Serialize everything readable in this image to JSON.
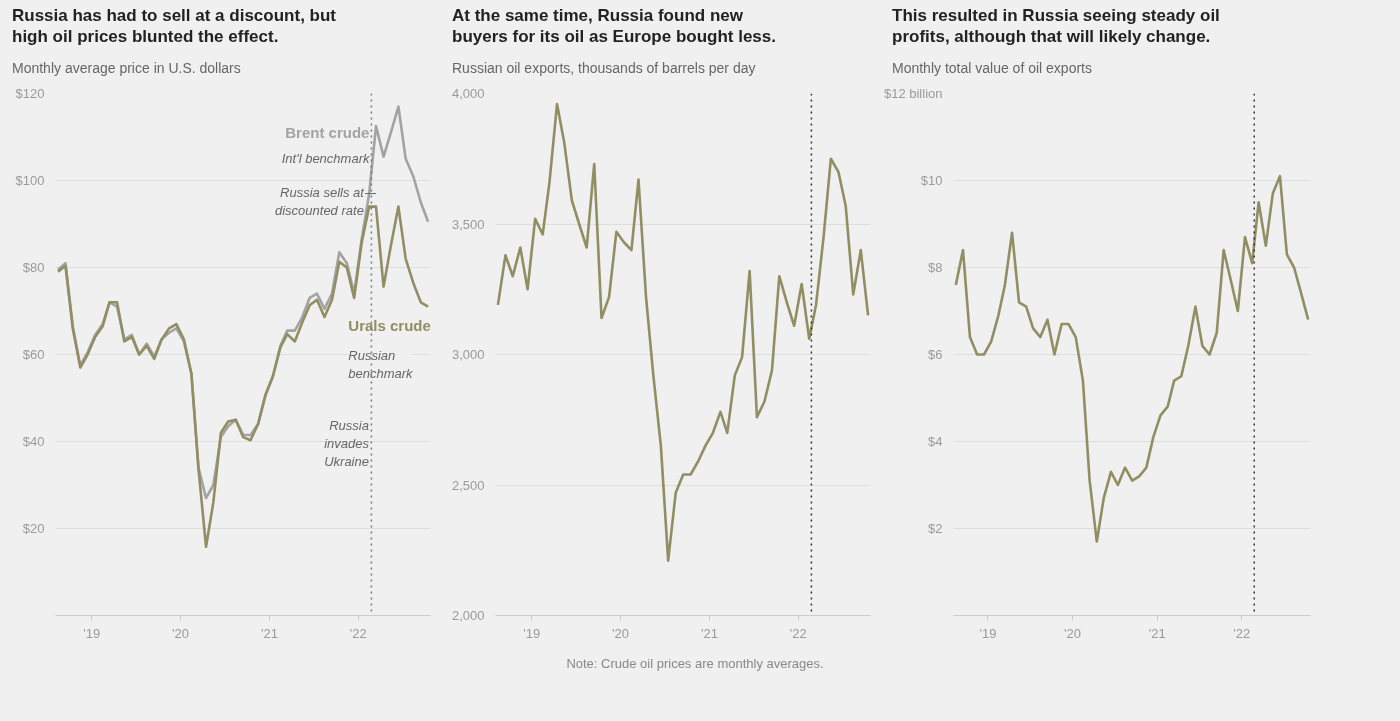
{
  "chart_data": [
    {
      "type": "line",
      "title": "Russia has had to sell at a discount, but high oil prices blunted the effect.",
      "subtitle": "Monthly average price in U.S. dollars",
      "x": [
        "2018-08-15",
        "2018-09-15",
        "2018-10-15",
        "2018-11-15",
        "2018-12-15",
        "2019-01-15",
        "2019-02-15",
        "2019-03-15",
        "2019-04-15",
        "2019-05-15",
        "2019-06-15",
        "2019-07-15",
        "2019-08-15",
        "2019-09-15",
        "2019-10-15",
        "2019-11-15",
        "2019-12-15",
        "2020-01-15",
        "2020-02-15",
        "2020-03-15",
        "2020-04-15",
        "2020-05-15",
        "2020-06-15",
        "2020-07-15",
        "2020-08-15",
        "2020-09-15",
        "2020-10-15",
        "2020-11-15",
        "2020-12-15",
        "2021-01-15",
        "2021-02-15",
        "2021-03-15",
        "2021-04-15",
        "2021-05-15",
        "2021-06-15",
        "2021-07-15",
        "2021-08-15",
        "2021-09-15",
        "2021-10-15",
        "2021-11-15",
        "2021-12-15",
        "2022-01-15",
        "2022-02-15",
        "2022-03-15",
        "2022-04-15",
        "2022-05-15",
        "2022-06-15",
        "2022-07-15",
        "2022-08-15",
        "2022-09-15",
        "2022-10-15"
      ],
      "series": [
        {
          "name": "Brent crude",
          "color": "#a3a3a3",
          "values": [
            79.5,
            81,
            66.5,
            57.5,
            60.5,
            64.5,
            67,
            72,
            71,
            63.5,
            64.5,
            60,
            62.5,
            59.5,
            63.5,
            65,
            66,
            63,
            55.5,
            34,
            27,
            30,
            41,
            43.5,
            45,
            41.5,
            41.5,
            44,
            50.5,
            55,
            62,
            65.5,
            65.5,
            68.5,
            73,
            74,
            70.5,
            74,
            83.5,
            81,
            74,
            86.5,
            97,
            112.5,
            105.5,
            111,
            117,
            105,
            101,
            95,
            90.5
          ]
        },
        {
          "name": "Urals crude",
          "color": "#918e63",
          "values": [
            79,
            80.4,
            66,
            57,
            60,
            64,
            66.5,
            72,
            72,
            63,
            64,
            60,
            62,
            59,
            63.4,
            66,
            67,
            63.5,
            55.5,
            33.7,
            15.8,
            26,
            42,
            44.6,
            45,
            41,
            40.3,
            44,
            50.7,
            55,
            61.7,
            64.7,
            63,
            67.3,
            71.3,
            72.6,
            68.6,
            72.6,
            81.3,
            80,
            73,
            85.7,
            94,
            94,
            75.6,
            85,
            94,
            82,
            76.5,
            72,
            71
          ]
        }
      ],
      "xlim": [
        "2018-08-05",
        "2022-10-25"
      ],
      "xticks": [
        {
          "value": "2019-01-01",
          "label": "'19"
        },
        {
          "value": "2020-01-01",
          "label": "'20"
        },
        {
          "value": "2021-01-01",
          "label": "'21"
        },
        {
          "value": "2022-01-01",
          "label": "'22"
        }
      ],
      "ylim": [
        0,
        120
      ],
      "yticks": [
        {
          "value": 20,
          "label": "$20"
        },
        {
          "value": 40,
          "label": "$40"
        },
        {
          "value": 60,
          "label": "$60"
        },
        {
          "value": 80,
          "label": "$80"
        },
        {
          "value": 100,
          "label": "$100"
        },
        {
          "value": 120,
          "label": "$120"
        }
      ],
      "grid": "y",
      "ref_lines": [
        {
          "axis": "x",
          "value": "2022-02-24",
          "label": "Russia invades Ukraine",
          "color": "#777777",
          "line_style": "dotted"
        }
      ],
      "annotations": [
        "Int'l benchmark",
        {
          "text": "Russia sells at discounted rate",
          "x": "2022-03-15",
          "y": 97
        },
        "Russian benchmark"
      ]
    },
    {
      "type": "line",
      "title": "At the same time, Russia found new buyers for its oil as Europe bought less.",
      "subtitle": "Russian oil exports, thousands of barrels per day",
      "x": [
        "2018-08-15",
        "2018-09-15",
        "2018-10-15",
        "2018-11-15",
        "2018-12-15",
        "2019-01-15",
        "2019-02-15",
        "2019-03-15",
        "2019-04-15",
        "2019-05-15",
        "2019-06-15",
        "2019-07-15",
        "2019-08-15",
        "2019-09-15",
        "2019-10-15",
        "2019-11-15",
        "2019-12-15",
        "2020-01-15",
        "2020-02-15",
        "2020-03-15",
        "2020-04-15",
        "2020-05-15",
        "2020-06-15",
        "2020-07-15",
        "2020-08-15",
        "2020-09-15",
        "2020-10-15",
        "2020-11-15",
        "2020-12-15",
        "2021-01-15",
        "2021-02-15",
        "2021-03-15",
        "2021-04-15",
        "2021-05-15",
        "2021-06-15",
        "2021-07-15",
        "2021-08-15",
        "2021-09-15",
        "2021-10-15",
        "2021-11-15",
        "2021-12-15",
        "2022-01-15",
        "2022-02-15",
        "2022-03-15",
        "2022-04-15",
        "2022-05-15",
        "2022-06-15",
        "2022-07-15",
        "2022-08-15",
        "2022-09-15",
        "2022-10-15"
      ],
      "series": [
        {
          "color": "#918e63",
          "values": [
            3190,
            3380,
            3300,
            3410,
            3250,
            3520,
            3460,
            3660,
            3960,
            3810,
            3590,
            3500,
            3410,
            3730,
            3140,
            3220,
            3470,
            3430,
            3400,
            3670,
            3220,
            2920,
            2650,
            2210,
            2470,
            2540,
            2540,
            2590,
            2650,
            2700,
            2780,
            2700,
            2920,
            2990,
            3320,
            2760,
            2820,
            2940,
            3300,
            3200,
            3110,
            3270,
            3060,
            3190,
            3450,
            3750,
            3700,
            3570,
            3230,
            3400,
            3150
          ]
        }
      ],
      "xlim": [
        "2018-08-05",
        "2022-10-25"
      ],
      "xticks": [
        {
          "value": "2019-01-01",
          "label": "'19"
        },
        {
          "value": "2020-01-01",
          "label": "'20"
        },
        {
          "value": "2021-01-01",
          "label": "'21"
        },
        {
          "value": "2022-01-01",
          "label": "'22"
        }
      ],
      "ylim": [
        2000,
        4000
      ],
      "yticks": [
        {
          "value": 2000,
          "label": "2,000"
        },
        {
          "value": 2500,
          "label": "2,500"
        },
        {
          "value": 3000,
          "label": "3,000"
        },
        {
          "value": 3500,
          "label": "3,500"
        },
        {
          "value": 4000,
          "label": "4,000"
        }
      ],
      "grid": "y",
      "ref_lines": [
        {
          "axis": "x",
          "value": "2022-02-24",
          "color": "#333333",
          "line_style": "dotted"
        }
      ],
      "annotations": [
        "Note: Crude oil prices are monthly averages."
      ]
    },
    {
      "type": "line",
      "title": "This resulted in Russia seeing steady oil profits, although that will likely change.",
      "subtitle": "Monthly total value of oil exports",
      "x": [
        "2018-08-15",
        "2018-09-15",
        "2018-10-15",
        "2018-11-15",
        "2018-12-15",
        "2019-01-15",
        "2019-02-15",
        "2019-03-15",
        "2019-04-15",
        "2019-05-15",
        "2019-06-15",
        "2019-07-15",
        "2019-08-15",
        "2019-09-15",
        "2019-10-15",
        "2019-11-15",
        "2019-12-15",
        "2020-01-15",
        "2020-02-15",
        "2020-03-15",
        "2020-04-15",
        "2020-05-15",
        "2020-06-15",
        "2020-07-15",
        "2020-08-15",
        "2020-09-15",
        "2020-10-15",
        "2020-11-15",
        "2020-12-15",
        "2021-01-15",
        "2021-02-15",
        "2021-03-15",
        "2021-04-15",
        "2021-05-15",
        "2021-06-15",
        "2021-07-15",
        "2021-08-15",
        "2021-09-15",
        "2021-10-15",
        "2021-11-15",
        "2021-12-15",
        "2022-01-15",
        "2022-02-15",
        "2022-03-15",
        "2022-04-15",
        "2022-05-15",
        "2022-06-15",
        "2022-07-15",
        "2022-08-15",
        "2022-09-15",
        "2022-10-15"
      ],
      "series": [
        {
          "color": "#918e63",
          "values": [
            7.6,
            8.4,
            6.4,
            6.0,
            6.0,
            6.3,
            6.9,
            7.6,
            8.8,
            7.2,
            7.1,
            6.6,
            6.4,
            6.8,
            6.0,
            6.7,
            6.7,
            6.4,
            5.4,
            3.1,
            1.7,
            2.7,
            3.3,
            3.0,
            3.4,
            3.1,
            3.2,
            3.4,
            4.1,
            4.6,
            4.8,
            5.4,
            5.5,
            6.2,
            7.1,
            6.2,
            6.0,
            6.5,
            8.4,
            7.7,
            7.0,
            8.7,
            8.1,
            9.5,
            8.5,
            9.7,
            10.1,
            8.3,
            8.0,
            7.4,
            6.8
          ]
        }
      ],
      "xlim": [
        "2018-08-05",
        "2022-10-25"
      ],
      "xticks": [
        {
          "value": "2019-01-01",
          "label": "'19"
        },
        {
          "value": "2020-01-01",
          "label": "'20"
        },
        {
          "value": "2021-01-01",
          "label": "'21"
        },
        {
          "value": "2022-01-01",
          "label": "'22"
        }
      ],
      "ylim": [
        0,
        12
      ],
      "yticks": [
        {
          "value": 2,
          "label": "$2"
        },
        {
          "value": 4,
          "label": "$4"
        },
        {
          "value": 6,
          "label": "$6"
        },
        {
          "value": 8,
          "label": "$8"
        },
        {
          "value": 10,
          "label": "$10"
        },
        {
          "value": 12,
          "label": "$12 billion"
        }
      ],
      "grid": "y",
      "ref_lines": [
        {
          "axis": "x",
          "value": "2022-02-24",
          "color": "#333333",
          "line_style": "dotted"
        }
      ]
    }
  ]
}
